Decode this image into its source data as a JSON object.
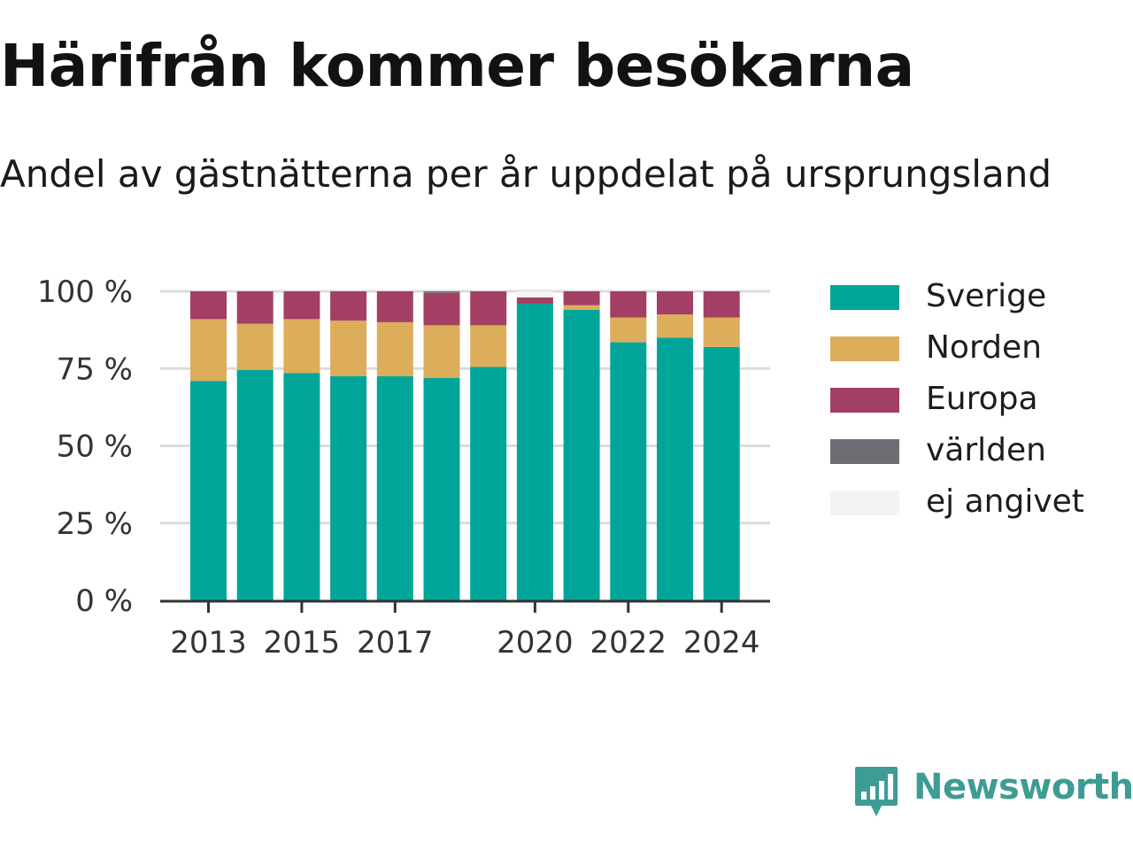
{
  "title": "Härifrån kommer besökarna",
  "subtitle": "Andel av gästnätterna per år uppdelat på ursprungsland",
  "brand": {
    "name": "Newsworthy",
    "logo_icon": "newsworthy-bar-chart-bubble-icon",
    "color": "#3d9c93"
  },
  "chart_data": {
    "type": "bar",
    "stacked": true,
    "categories": [
      "2013",
      "2014",
      "2015",
      "2016",
      "2017",
      "2018",
      "2019",
      "2020",
      "2021",
      "2022",
      "2023",
      "2024"
    ],
    "x_tick_labels": [
      "2013",
      "2015",
      "2017",
      "2020",
      "2022",
      "2024"
    ],
    "y_tick_labels": [
      "0 %",
      "25 %",
      "50 %",
      "75 %",
      "100 %"
    ],
    "y_ticks": [
      0,
      25,
      50,
      75,
      100
    ],
    "ylim": [
      0,
      100
    ],
    "grid": true,
    "legend_position": "right",
    "series": [
      {
        "name": "Sverige",
        "color": "#00a59a",
        "values": [
          71,
          74.5,
          73.5,
          72.5,
          72.5,
          72,
          75.5,
          96,
          94,
          83.5,
          85,
          82
        ]
      },
      {
        "name": "Norden",
        "color": "#dcad5b",
        "values": [
          20,
          15,
          17.5,
          18,
          17.5,
          17,
          13.5,
          0,
          1.5,
          8,
          7.5,
          9.5
        ]
      },
      {
        "name": "Europa",
        "color": "#a33f64",
        "values": [
          9,
          10.5,
          9,
          9.5,
          10,
          10.5,
          11,
          2,
          4.5,
          8.5,
          7.5,
          8.5
        ]
      },
      {
        "name": "världen",
        "color": "#6e6d73",
        "values": [
          0,
          0,
          0,
          0,
          0,
          0.5,
          0,
          0,
          0,
          0,
          0,
          0
        ]
      },
      {
        "name": "ej angivet",
        "color": "#f3f3f3",
        "values": [
          0,
          0,
          0,
          0,
          0,
          0,
          0,
          2,
          0,
          0,
          0,
          0
        ]
      }
    ]
  }
}
